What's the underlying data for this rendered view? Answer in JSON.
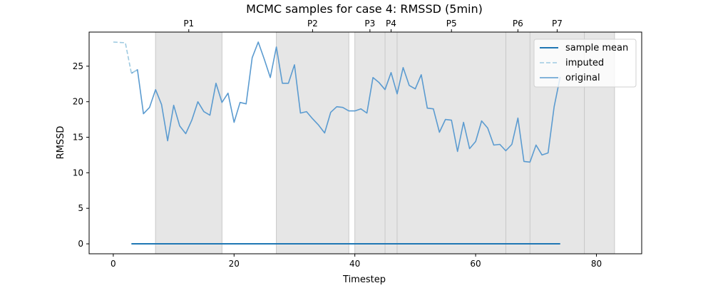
{
  "chart_data": {
    "type": "line",
    "title": "MCMC samples for case 4: RMSSD (5min)",
    "xlabel": "Timestep",
    "ylabel": "RMSSD",
    "xlim": [
      -4,
      87.5
    ],
    "ylim": [
      -1.4,
      29.8
    ],
    "xticks": [
      0,
      20,
      40,
      60,
      80
    ],
    "yticks": [
      0,
      5,
      10,
      15,
      20,
      25
    ],
    "grid": false,
    "legend_position": "top-right",
    "phases": [
      {
        "label": "P1",
        "start": 7,
        "end": 18,
        "label_x": 12.5
      },
      {
        "label": "P2",
        "start": 27,
        "end": 39,
        "label_x": 33
      },
      {
        "label": "P3",
        "start": 40,
        "end": 45,
        "label_x": 42.5
      },
      {
        "label": "P4",
        "start": 45,
        "end": 47,
        "label_x": 46
      },
      {
        "label": "P5",
        "start": 47,
        "end": 65,
        "label_x": 56
      },
      {
        "label": "P6",
        "start": 65,
        "end": 69,
        "label_x": 67
      },
      {
        "label": "P7",
        "start": 69,
        "end": 78,
        "label_x": 73.5
      },
      {
        "label": "",
        "start": 78,
        "end": 83,
        "label_x": 80.5
      }
    ],
    "series": [
      {
        "name": "sample mean",
        "color": "#1f77b4",
        "style": "solid",
        "x": [
          3,
          74
        ],
        "y": [
          0,
          0
        ]
      },
      {
        "name": "imputed",
        "color": "#9ecae1",
        "style": "dashed",
        "x": [
          0,
          2,
          3,
          4
        ],
        "y": [
          28.4,
          28.3,
          24.0,
          24.5
        ]
      },
      {
        "name": "original",
        "color": "#5b9bd0",
        "style": "solid",
        "x": [
          3,
          4,
          5,
          6,
          7,
          8,
          9,
          10,
          11,
          12,
          13,
          14,
          15,
          16,
          17,
          18,
          19,
          20,
          21,
          22,
          23,
          24,
          25,
          26,
          27,
          28,
          29,
          30,
          31,
          32,
          33,
          34,
          35,
          36,
          37,
          38,
          39,
          40,
          41,
          42,
          43,
          44,
          45,
          46,
          47,
          48,
          49,
          50,
          51,
          52,
          53,
          54,
          55,
          56,
          57,
          58,
          59,
          60,
          61,
          62,
          63,
          64,
          65,
          66,
          67,
          68,
          69,
          70,
          71,
          72,
          73,
          74
        ],
        "y": [
          24.0,
          24.5,
          18.3,
          19.2,
          21.7,
          19.6,
          14.5,
          19.5,
          16.6,
          15.5,
          17.4,
          20.0,
          18.6,
          18.1,
          22.6,
          19.9,
          21.2,
          17.1,
          19.9,
          19.7,
          26.2,
          28.4,
          26.0,
          23.4,
          27.7,
          22.6,
          22.6,
          25.2,
          18.4,
          18.6,
          17.6,
          16.7,
          15.6,
          18.5,
          19.3,
          19.2,
          18.7,
          18.7,
          19.0,
          18.4,
          23.4,
          22.7,
          21.7,
          24.1,
          21.1,
          24.8,
          22.3,
          21.8,
          23.8,
          19.1,
          19.0,
          15.7,
          17.5,
          17.4,
          13.0,
          17.1,
          13.4,
          14.4,
          17.3,
          16.3,
          13.9,
          14.0,
          13.1,
          14.0,
          17.7,
          11.6,
          11.5,
          13.9,
          12.5,
          12.8,
          19.3,
          23.5
        ]
      }
    ]
  }
}
